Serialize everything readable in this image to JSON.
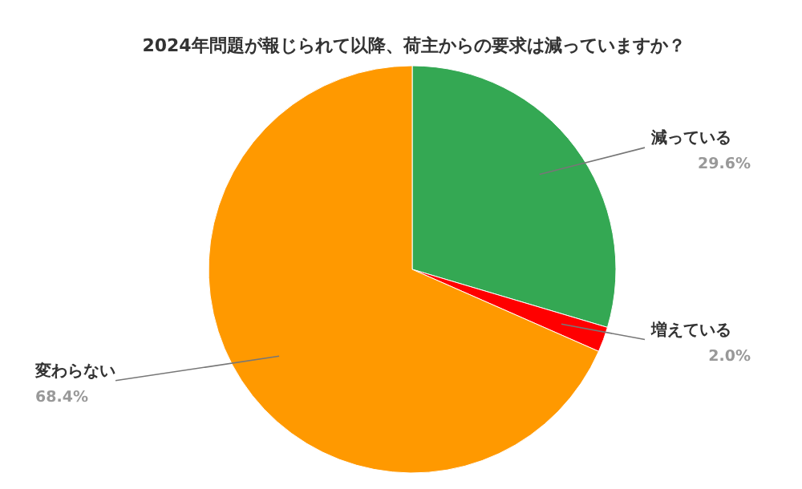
{
  "chart_data": {
    "type": "pie",
    "title": "2024年問題が報じられて以降、荷主からの要求は減っていますか？",
    "categories": [
      "減っている",
      "増えている",
      "変わらない"
    ],
    "values": [
      29.6,
      2.0,
      68.4
    ],
    "colors": [
      "#34a853",
      "#ff0000",
      "#ff9900"
    ],
    "value_labels": [
      "29.6%",
      "2.0%",
      "68.4%"
    ]
  }
}
